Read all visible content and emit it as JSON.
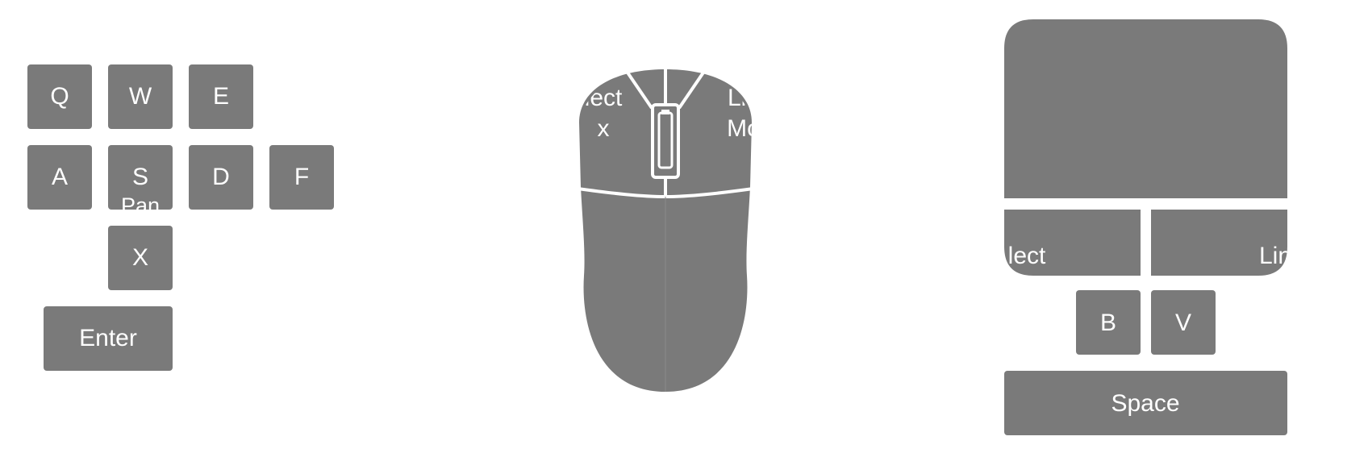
{
  "colors": {
    "key": "#7a7a7a",
    "label": "#ffffff",
    "background": "#ffffff"
  },
  "keyboard": {
    "q": "Q",
    "w": "W",
    "e": "E",
    "a": "A",
    "s": "S",
    "s_sub": "Pan",
    "d": "D",
    "f": "F",
    "x": "X",
    "enter": "Enter"
  },
  "mouse": {
    "left_button_line1": "lect",
    "left_button_line2": "x",
    "right_button_line1": "Lin",
    "right_button_line2": "Mo"
  },
  "trackpad": {
    "left_button": "lect",
    "right_button": "Lin",
    "b": "B",
    "v": "V",
    "space": "Space"
  }
}
